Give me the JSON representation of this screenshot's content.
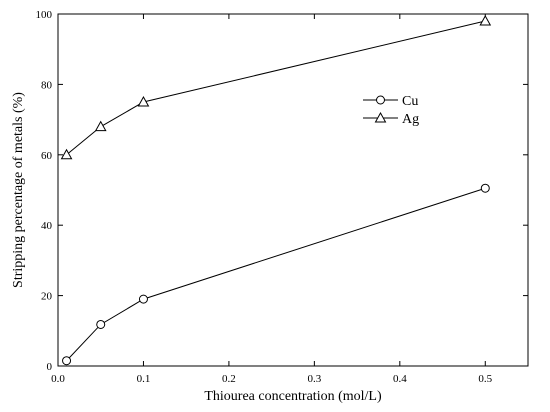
{
  "chart_data": {
    "type": "line",
    "xlabel": "Thiourea concentration (mol/L)",
    "ylabel": "Stripping percentage of metals (%)",
    "xlim": [
      0,
      0.55
    ],
    "ylim": [
      0,
      100
    ],
    "x_ticks": [
      "0.0",
      "0.1",
      "0.2",
      "0.3",
      "0.4",
      "0.5"
    ],
    "y_ticks": [
      "0",
      "20",
      "40",
      "60",
      "80",
      "100"
    ],
    "grid": false,
    "legend_position": "center-right",
    "series": [
      {
        "name": "Cu",
        "marker": "circle",
        "x": [
          0.01,
          0.05,
          0.1,
          0.5
        ],
        "y": [
          1.5,
          11.8,
          19,
          50.5
        ]
      },
      {
        "name": "Ag",
        "marker": "triangle",
        "x": [
          0.01,
          0.05,
          0.1,
          0.5
        ],
        "y": [
          60,
          68,
          75,
          98
        ]
      }
    ]
  }
}
